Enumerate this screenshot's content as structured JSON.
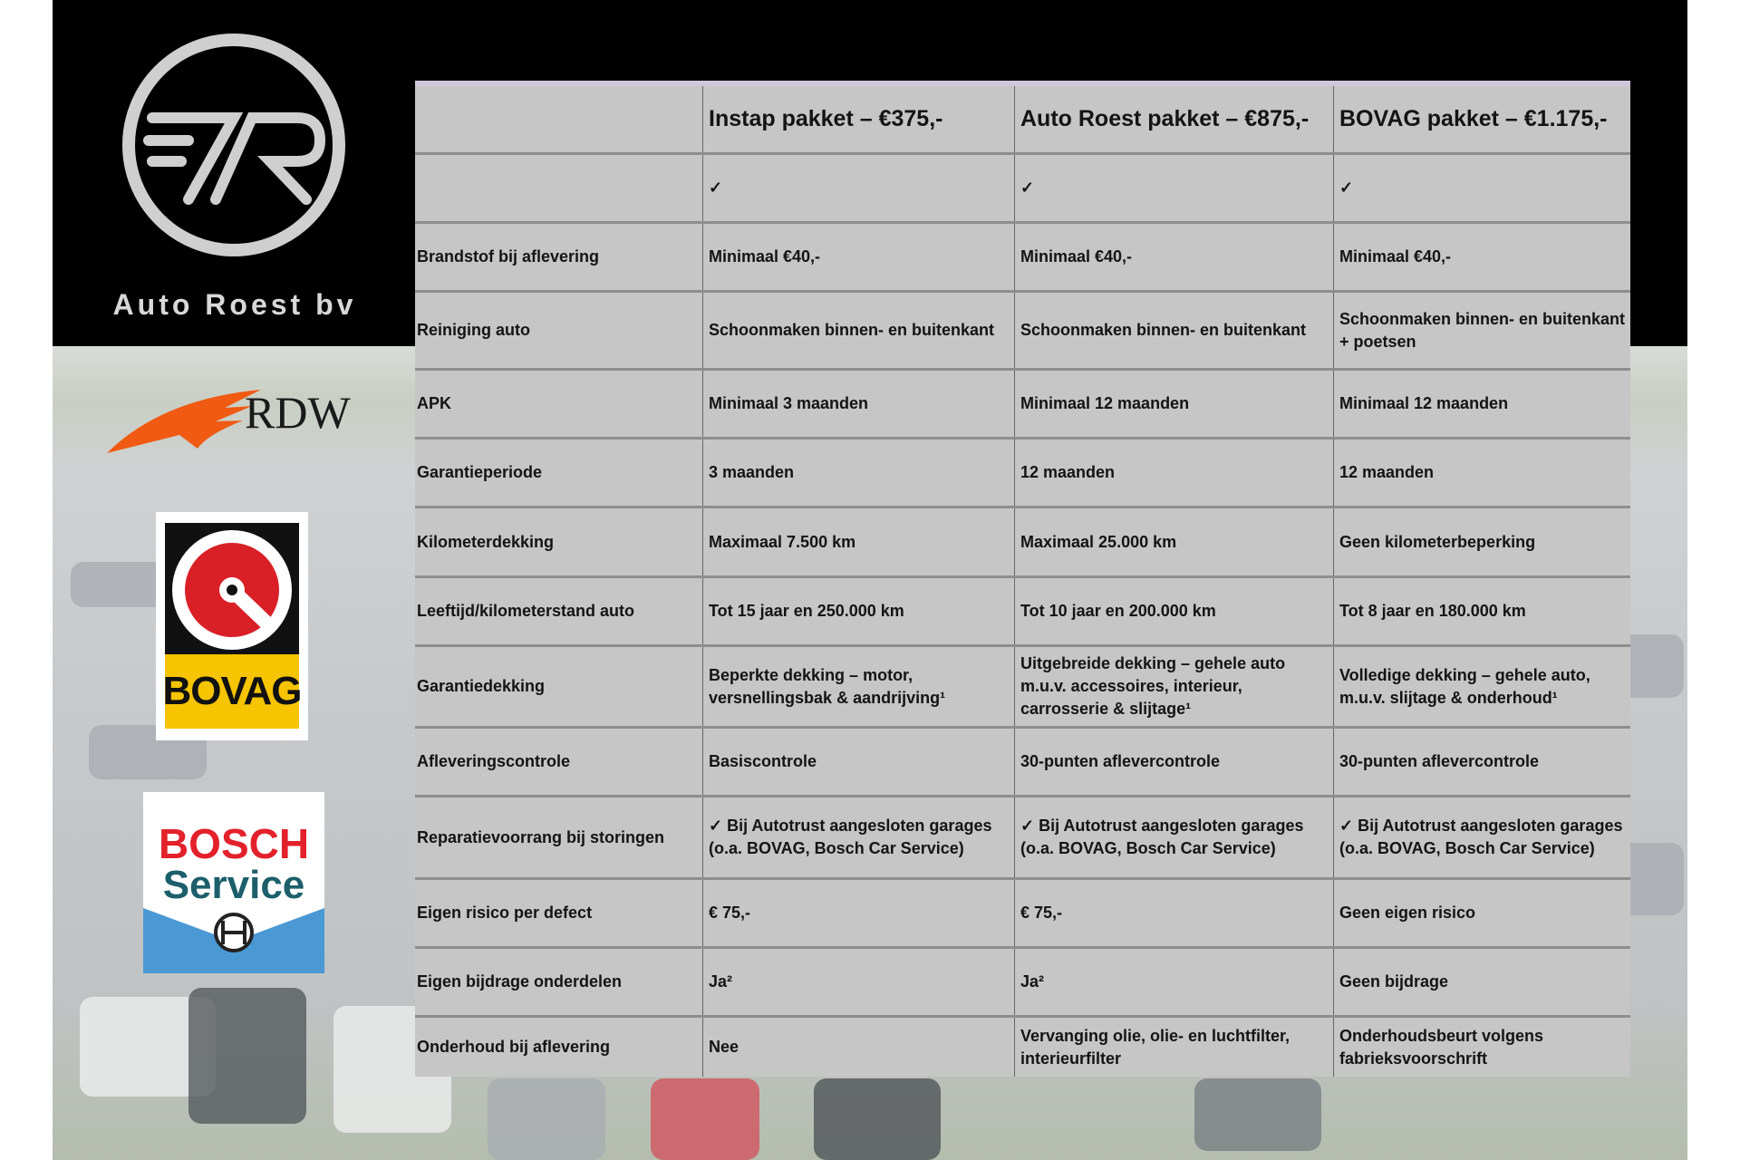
{
  "brand": {
    "name": "Auto Roest bv",
    "logo": "AR-circle-logo"
  },
  "partner_logos": [
    {
      "name": "RDW",
      "icon": "rdw-logo"
    },
    {
      "name": "BOVAG",
      "icon": "bovag-logo"
    },
    {
      "name": "BOSCH Service",
      "line1": "BOSCH",
      "line2": "Service",
      "icon": "bosch-service-logo"
    }
  ],
  "colors": {
    "table_bg": "#c6c6c6",
    "rdw_orange": "#f05a12",
    "bovag_yellow": "#f6c400",
    "bosch_red": "#e3212b",
    "bosch_teal": "#1c5f6b",
    "bosch_blue": "#4a98d4"
  },
  "table": {
    "headers": [
      "",
      "Instap pakket – €375,-",
      "Auto Roest pakket – €875,-",
      "BOVAG pakket – €1.175,-"
    ],
    "rows": [
      [
        "",
        "✓",
        "✓",
        "✓"
      ],
      [
        "Brandstof bij aflevering",
        "Minimaal €40,-",
        "Minimaal €40,-",
        "Minimaal €40,-"
      ],
      [
        "Reiniging auto",
        "Schoonmaken binnen- en buitenkant",
        "Schoonmaken binnen- en buitenkant",
        "Schoonmaken binnen- en buitenkant + poetsen"
      ],
      [
        "APK",
        "Minimaal 3 maanden",
        "Minimaal 12 maanden",
        "Minimaal 12 maanden"
      ],
      [
        "Garantieperiode",
        "3 maanden",
        "12 maanden",
        "12 maanden"
      ],
      [
        "Kilometerdekking",
        "Maximaal 7.500 km",
        "Maximaal 25.000 km",
        "Geen kilometerbeperking"
      ],
      [
        "Leeftijd/kilometerstand auto",
        "Tot 15 jaar en 250.000 km",
        "Tot 10 jaar en 200.000 km",
        "Tot 8 jaar en 180.000 km"
      ],
      [
        "Garantiedekking",
        "Beperkte dekking – motor, versnellingsbak & aandrijving¹",
        "Uitgebreide dekking – gehele auto m.u.v. accessoires, interieur, carrosserie & slijtage¹",
        "Volledige dekking – gehele auto, m.u.v. slijtage & onderhoud¹"
      ],
      [
        "Afleveringscontrole",
        "Basiscontrole",
        "30-punten aflevercontrole",
        "30-punten aflevercontrole"
      ],
      [
        "Reparatievoorrang bij storingen",
        "✓ Bij Autotrust aangesloten garages (o.a. BOVAG, Bosch Car Service)",
        "✓ Bij Autotrust aangesloten garages (o.a. BOVAG, Bosch Car Service)",
        "✓ Bij Autotrust aangesloten garages (o.a. BOVAG, Bosch Car Service)"
      ],
      [
        "Eigen risico per defect",
        "€ 75,-",
        "€ 75,-",
        "Geen eigen risico"
      ],
      [
        "Eigen bijdrage onderdelen",
        "Ja²",
        "Ja²",
        "Geen bijdrage"
      ],
      [
        "Onderhoud bij aflevering",
        "Nee",
        "Vervanging olie, olie- en luchtfilter, interieurfilter",
        "Onderhoudsbeurt volgens fabrieksvoorschrift"
      ]
    ]
  }
}
